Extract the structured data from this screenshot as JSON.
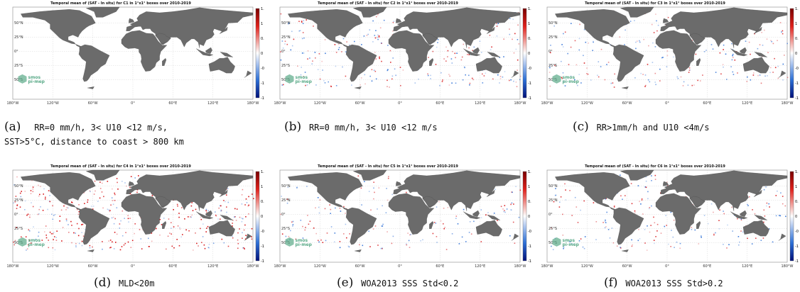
{
  "panels": [
    {
      "title": "Temporal mean of (SAT - In situ) for C1 in 1°x1° boxes over 2010-2019",
      "label": "(a)",
      "caption": "RR=0 mm/h, 3< U10 <12 m/s, SST>5°C, distance to coast > 800 km",
      "caption_line1": "RR=0 mm/h, 3< U10 <12 m/s,",
      "caption_line2": "SST>5°C, distance to coast > 800 km",
      "density": 0.0
    },
    {
      "title": "Temporal mean of (SAT - In situ) for C2 in 1°x1° boxes over 2010-2019",
      "label": "(b)",
      "caption": "RR=0 mm/h, 3< U10 <12 m/s",
      "density": 0.35
    },
    {
      "title": "Temporal mean of (SAT - In situ) for C3 in 1°x1° boxes over 2010-2019",
      "label": "(c)",
      "caption": "RR>1mm/h and U10 <4m/s",
      "density": 0.3
    },
    {
      "title": "Temporal mean of (SAT - In situ) for C4 in 1°x1° boxes over 2010-2019",
      "label": "(d)",
      "caption": "MLD<20m",
      "density": 0.55
    },
    {
      "title": "Temporal mean of (SAT - In situ) for C5 in 1°x1° boxes over 2010-2019",
      "label": "(e)",
      "caption": "WOA2013 SSS Std<0.2",
      "density": 0.25
    },
    {
      "title": "Temporal mean of (SAT - In situ) for C6 in 1°x1° boxes over 2010-2019",
      "label": "(f)",
      "caption": "WOA2013 SSS Std>0.2",
      "density": 0.3
    }
  ],
  "colorbar_ticks": [
    "1.5",
    "1",
    "0.5",
    "0",
    "-0.5",
    "-1",
    "-1.5"
  ],
  "lon_ticks": [
    "180°W",
    "120°W",
    "60°W",
    "0°",
    "60°E",
    "120°E",
    "180°W"
  ],
  "lat_ticks": [
    "50°N",
    "25°N",
    "0°",
    "25°S",
    "50°S"
  ],
  "logo": "smos pi-mep",
  "colors": {
    "land": "#6b6b6b",
    "positive": "#d7191c",
    "negative": "#2c6fd6",
    "logo": "#5aaa88"
  }
}
